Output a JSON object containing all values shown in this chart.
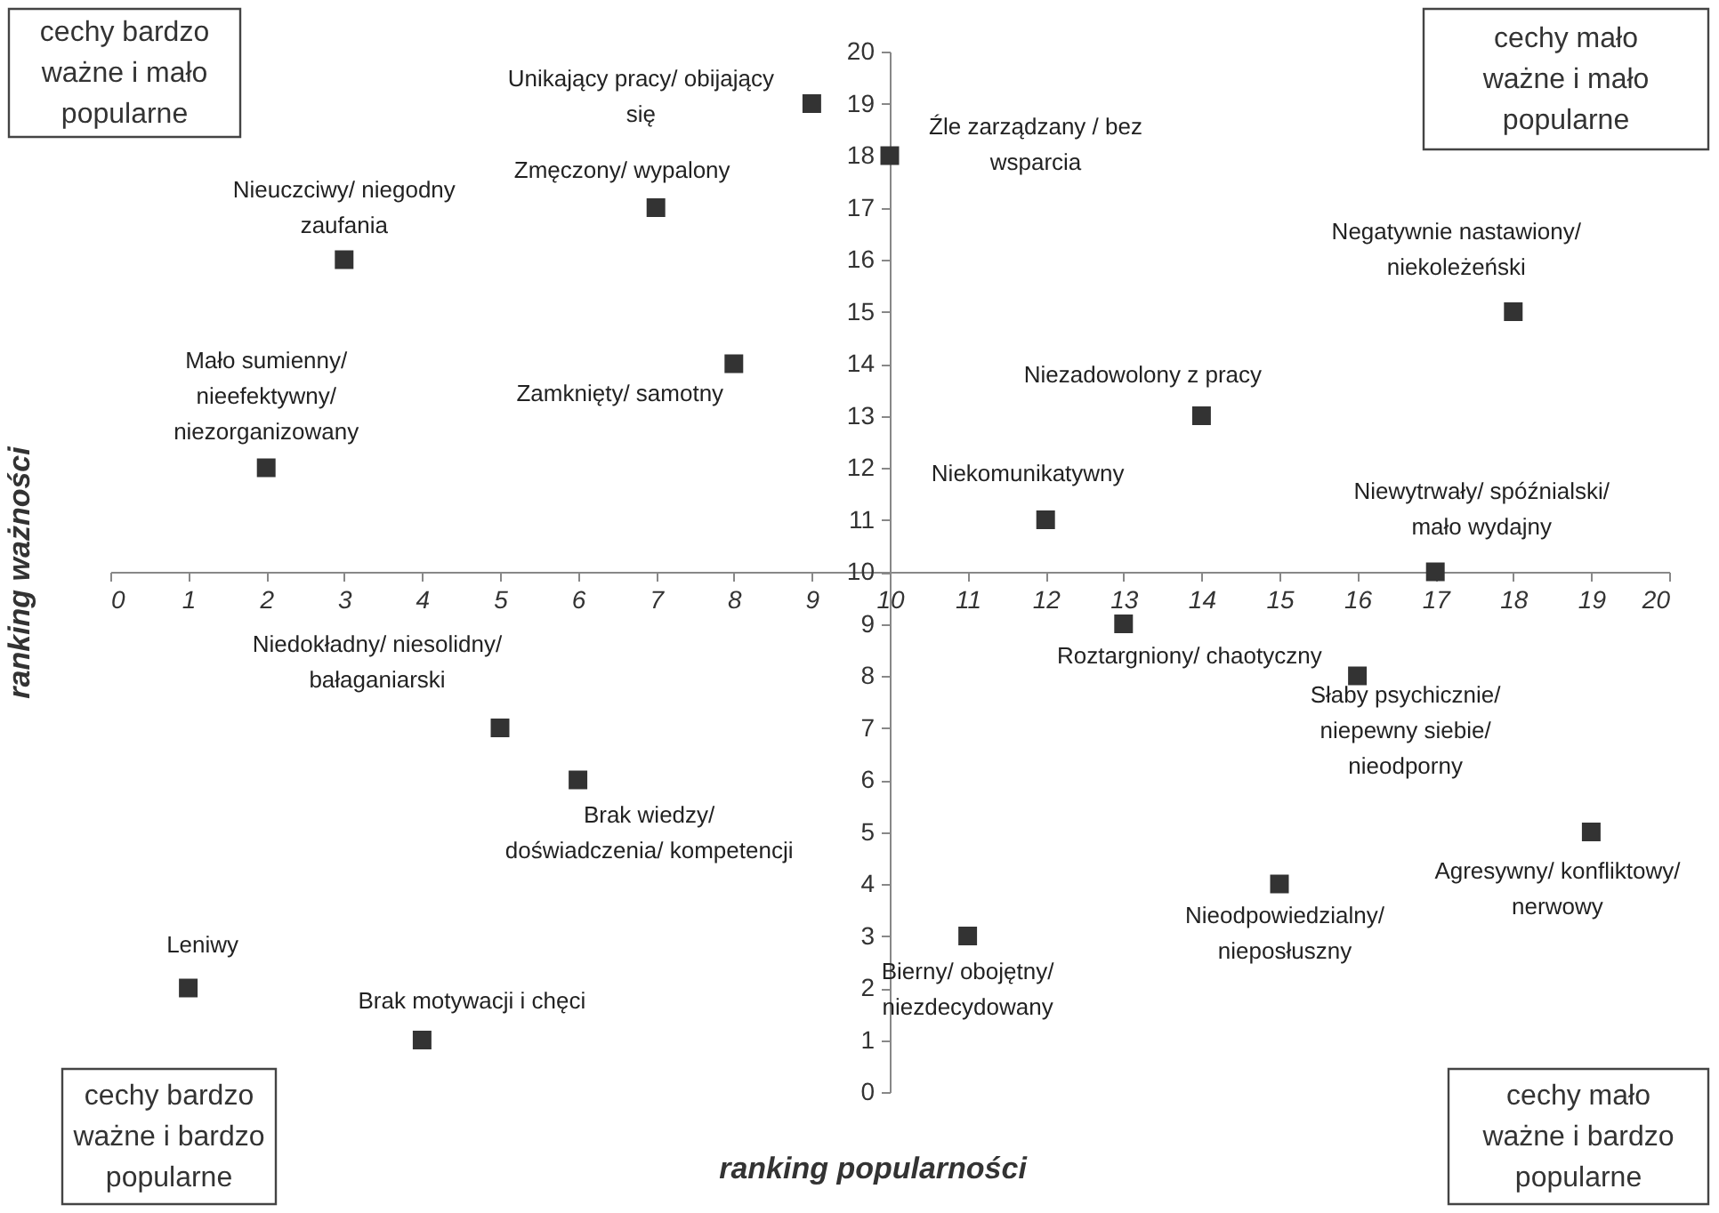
{
  "chart_data": {
    "type": "scatter",
    "xlabel": "ranking popularności",
    "ylabel": "ranking ważności",
    "xlim": [
      0,
      20
    ],
    "ylim": [
      0,
      20
    ],
    "xticks": [
      0,
      1,
      2,
      3,
      4,
      5,
      6,
      7,
      8,
      9,
      10,
      11,
      12,
      13,
      14,
      15,
      16,
      17,
      18,
      19,
      20
    ],
    "yticks": [
      0,
      1,
      2,
      3,
      4,
      5,
      6,
      7,
      8,
      9,
      10,
      11,
      12,
      13,
      14,
      15,
      16,
      17,
      18,
      19,
      20
    ],
    "grid": false,
    "marker": "square",
    "series": [
      {
        "color": "#333333",
        "x": [
          9,
          10,
          7,
          3,
          18,
          8,
          14,
          2,
          12,
          17,
          13,
          16,
          5,
          6,
          19,
          15,
          11,
          1,
          4
        ],
        "values": [
          19,
          18,
          17,
          16,
          15,
          14,
          13,
          12,
          11,
          10,
          9,
          8,
          7,
          6,
          5,
          4,
          3,
          2,
          1
        ]
      }
    ],
    "annotations": [
      "cechy bardzo\nważne i mało\npopularne",
      "cechy mało\nważne i mało\npopularne",
      "cechy bardzo\nważne i bardzo\npopularne",
      "cechy mało\nważne i bardzo\npopularne",
      {
        "text": "Unikający pracy/ obijający\nsię",
        "x": 9,
        "y": 19
      },
      {
        "text": "Źle zarządzany / bez\nwsparcia",
        "x": 10,
        "y": 18
      },
      {
        "text": "Zmęczony/ wypalony",
        "x": 7,
        "y": 17
      },
      {
        "text": "Nieuczciwy/ niegodny\nzaufania",
        "x": 3,
        "y": 16
      },
      {
        "text": "Negatywnie nastawiony/\nniekoleżeński",
        "x": 18,
        "y": 15
      },
      {
        "text": "Zamknięty/ samotny",
        "x": 8,
        "y": 14
      },
      {
        "text": "Niezadowolony z pracy",
        "x": 14,
        "y": 13
      },
      {
        "text": "Mało sumienny/\nnieefektywny/\nniezorganizowany",
        "x": 2,
        "y": 12
      },
      {
        "text": "Niekomunikatywny",
        "x": 12,
        "y": 11
      },
      {
        "text": "Niewytrwały/ spóźnialski/\nmało wydajny",
        "x": 17,
        "y": 10
      },
      {
        "text": "Roztargniony/ chaotyczny",
        "x": 13,
        "y": 9
      },
      {
        "text": "Słaby psychicznie/\nniepewny siebie/\nnieodporny",
        "x": 16,
        "y": 8
      },
      {
        "text": "Niedokładny/ niesolidny/\nbałaganiarski",
        "x": 5,
        "y": 7
      },
      {
        "text": "Brak wiedzy/\ndoświadczenia/ kompetencji",
        "x": 6,
        "y": 6
      },
      {
        "text": "Agresywny/ konfliktowy/\nnerwowy",
        "x": 19,
        "y": 5
      },
      {
        "text": "Nieodpowiedzialny/\nnieposłuszny",
        "x": 15,
        "y": 4
      },
      {
        "text": "Bierny/ obojętny/\nniezdecydowany",
        "x": 11,
        "y": 3
      },
      {
        "text": "Leniwy",
        "x": 1,
        "y": 2
      },
      {
        "text": "Brak motywacji i chęci",
        "x": 4,
        "y": 1
      }
    ]
  }
}
